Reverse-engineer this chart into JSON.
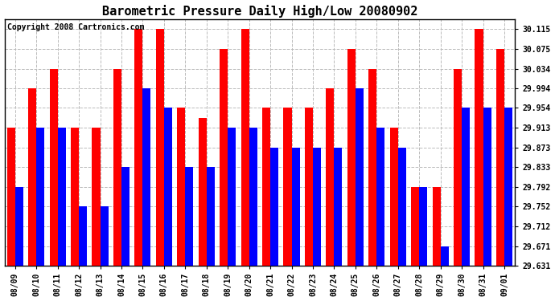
{
  "title": "Barometric Pressure Daily High/Low 20080902",
  "copyright": "Copyright 2008 Cartronics.com",
  "dates": [
    "08/09",
    "08/10",
    "08/11",
    "08/12",
    "08/13",
    "08/14",
    "08/15",
    "08/16",
    "08/17",
    "08/18",
    "08/19",
    "08/20",
    "08/21",
    "08/22",
    "08/23",
    "08/24",
    "08/25",
    "08/26",
    "08/27",
    "08/28",
    "08/29",
    "08/30",
    "08/31",
    "09/01"
  ],
  "highs": [
    29.913,
    29.994,
    30.034,
    29.913,
    29.913,
    30.034,
    30.115,
    30.115,
    29.954,
    29.934,
    30.075,
    30.115,
    29.954,
    29.954,
    29.954,
    29.994,
    30.075,
    30.034,
    29.913,
    29.792,
    29.792,
    30.034,
    30.115,
    30.075
  ],
  "lows": [
    29.792,
    29.913,
    29.913,
    29.752,
    29.752,
    29.833,
    29.994,
    29.954,
    29.833,
    29.833,
    29.913,
    29.913,
    29.873,
    29.873,
    29.873,
    29.873,
    29.994,
    29.913,
    29.873,
    29.792,
    29.671,
    29.954,
    29.954,
    29.954
  ],
  "high_color": "#ff0000",
  "low_color": "#0000ff",
  "bg_color": "#ffffff",
  "grid_color": "#bbbbbb",
  "yticks": [
    29.631,
    29.671,
    29.712,
    29.752,
    29.792,
    29.833,
    29.873,
    29.913,
    29.954,
    29.994,
    30.034,
    30.075,
    30.115
  ],
  "ymin": 29.631,
  "ymax": 30.135,
  "bar_width": 0.38,
  "title_fontsize": 11,
  "tick_fontsize": 7,
  "copyright_fontsize": 7
}
